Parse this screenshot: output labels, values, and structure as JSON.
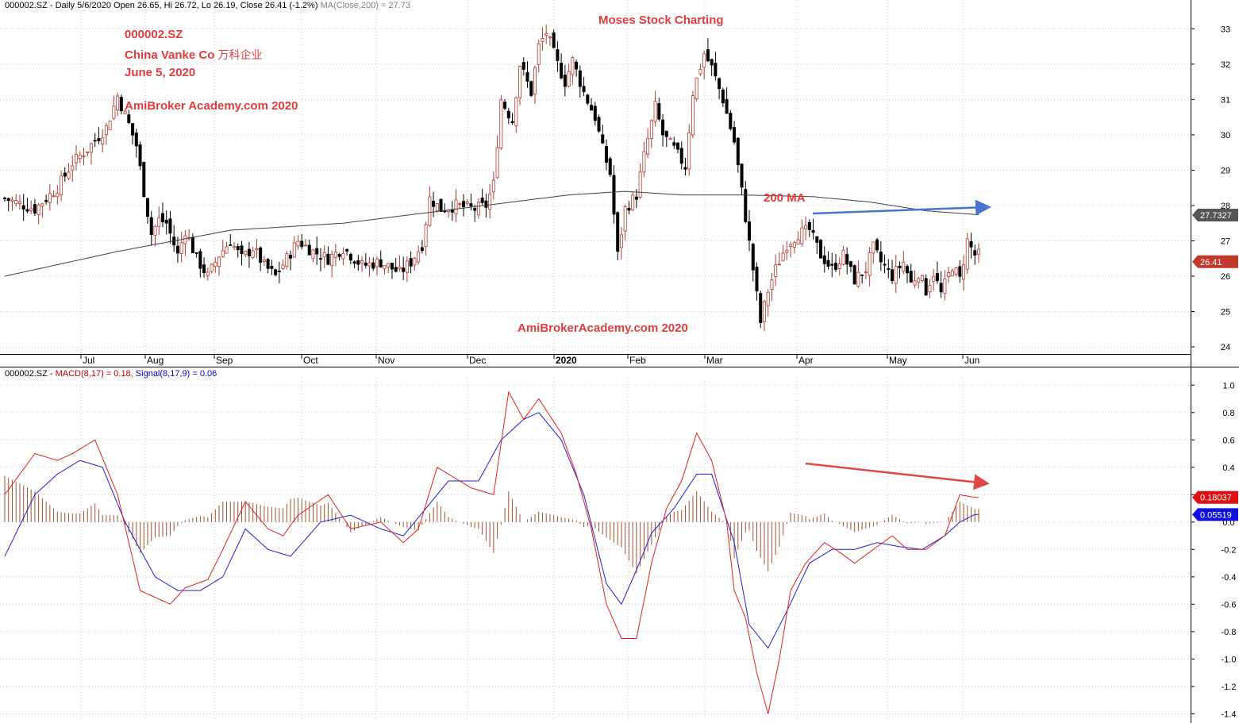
{
  "price_header": {
    "symbol": "000002.SZ",
    "period": "Daily",
    "date": "5/6/2020",
    "open": "Open 26.65,",
    "hi": "Hi 26.72,",
    "lo": "Lo 26.19,",
    "close": "Close 26.41 (-1.2%)",
    "ma": "MA(Close,200) = 27.73"
  },
  "macd_header": {
    "symbol": "000002.SZ -",
    "macd": "MACD(8,17) = 0.18,",
    "signal": "Signal(8,17,9) = 0.06"
  },
  "annotations": {
    "ticker": "000002.SZ",
    "company": "China Vanke Co",
    "company_cn": "万科企业",
    "date": "June 5, 2020",
    "academy_top": "AmiBroker Academy.com  2020",
    "moses": "Moses Stock Charting",
    "ma_label": "200 MA",
    "academy_bottom": "AmiBrokerAcademy.com  2020"
  },
  "colors": {
    "up_candle": "#b03a2e",
    "down_candle": "#000000",
    "ma_line": "#404040",
    "macd_line": "#e02020",
    "signal_line": "#1f1fd0",
    "histogram": "#a0522d",
    "annotation": "#e03c3c",
    "trend_price": "#4a74c9",
    "trend_macd": "#e04848"
  },
  "chart_data": [
    {
      "type": "candlestick",
      "title": "000002.SZ - Daily",
      "x_labels": [
        "Jul",
        "Aug",
        "Sep",
        "Oct",
        "Nov",
        "Dec",
        "2020",
        "Feb",
        "Mar",
        "Apr",
        "May",
        "Jun"
      ],
      "ylim": [
        23.8,
        33.5
      ],
      "y_ticks": [
        24,
        25,
        26,
        27,
        28,
        29,
        30,
        31,
        32,
        33
      ],
      "last_price": "26.41",
      "ma_value": "27.7327",
      "price_path": [
        [
          0,
          28.2
        ],
        [
          8,
          27.9
        ],
        [
          14,
          28.5
        ],
        [
          18,
          29.2
        ],
        [
          22,
          29.6
        ],
        [
          27,
          30.2
        ],
        [
          30,
          31.1
        ],
        [
          33,
          30.3
        ],
        [
          35,
          29.7
        ],
        [
          37,
          28.4
        ],
        [
          39,
          27.2
        ],
        [
          41,
          27.6
        ],
        [
          43,
          27.5
        ],
        [
          46,
          26.6
        ],
        [
          48,
          27.3
        ],
        [
          51,
          26.5
        ],
        [
          54,
          26.0
        ],
        [
          57,
          26.6
        ],
        [
          60,
          27.0
        ],
        [
          63,
          26.5
        ],
        [
          66,
          26.8
        ],
        [
          69,
          26.3
        ],
        [
          72,
          26.0
        ],
        [
          75,
          26.5
        ],
        [
          78,
          27.0
        ],
        [
          82,
          26.7
        ],
        [
          86,
          26.5
        ],
        [
          90,
          26.8
        ],
        [
          95,
          26.3
        ],
        [
          100,
          26.4
        ],
        [
          105,
          26.1
        ],
        [
          108,
          26.4
        ],
        [
          111,
          26.9
        ],
        [
          113,
          28.2
        ],
        [
          116,
          27.9
        ],
        [
          120,
          28.0
        ],
        [
          125,
          27.9
        ],
        [
          128,
          28.0
        ],
        [
          130,
          28.6
        ],
        [
          132,
          31.0
        ],
        [
          135,
          30.4
        ],
        [
          137,
          32.0
        ],
        [
          140,
          31.2
        ],
        [
          142,
          32.5
        ],
        [
          144,
          32.9
        ],
        [
          147,
          32.0
        ],
        [
          149,
          31.5
        ],
        [
          151,
          32.1
        ],
        [
          154,
          31.2
        ],
        [
          157,
          30.5
        ],
        [
          159,
          29.6
        ],
        [
          161,
          28.9
        ],
        [
          163,
          26.6
        ],
        [
          165,
          27.9
        ],
        [
          168,
          28.3
        ],
        [
          170,
          29.4
        ],
        [
          173,
          30.8
        ],
        [
          175,
          30.0
        ],
        [
          178,
          29.6
        ],
        [
          181,
          29.1
        ],
        [
          183,
          31.2
        ],
        [
          186,
          32.3
        ],
        [
          188,
          31.9
        ],
        [
          191,
          31.0
        ],
        [
          194,
          29.8
        ],
        [
          196,
          28.4
        ],
        [
          199,
          26.2
        ],
        [
          201,
          24.7
        ],
        [
          203,
          25.6
        ],
        [
          205,
          26.2
        ],
        [
          208,
          26.9
        ],
        [
          211,
          27.2
        ],
        [
          214,
          27.3
        ],
        [
          217,
          26.6
        ],
        [
          220,
          26.2
        ],
        [
          223,
          26.6
        ],
        [
          226,
          25.9
        ],
        [
          229,
          26.2
        ],
        [
          231,
          26.8
        ],
        [
          233,
          26.4
        ],
        [
          236,
          26.0
        ],
        [
          239,
          26.4
        ],
        [
          241,
          25.8
        ],
        [
          243,
          26.1
        ],
        [
          245,
          25.6
        ],
        [
          247,
          26.1
        ],
        [
          249,
          25.5
        ],
        [
          252,
          26.3
        ],
        [
          254,
          25.9
        ],
        [
          256,
          27.0
        ],
        [
          258,
          26.6
        ]
      ],
      "ma_path": [
        [
          0,
          26.0
        ],
        [
          30,
          26.7
        ],
        [
          60,
          27.3
        ],
        [
          90,
          27.5
        ],
        [
          120,
          27.9
        ],
        [
          150,
          28.3
        ],
        [
          165,
          28.4
        ],
        [
          180,
          28.3
        ],
        [
          195,
          28.3
        ],
        [
          215,
          28.25
        ],
        [
          230,
          28.1
        ],
        [
          245,
          27.85
        ],
        [
          260,
          27.73
        ]
      ]
    },
    {
      "type": "line",
      "title": "MACD(8,17) / Signal(8,17,9)",
      "ylim": [
        -1.45,
        1.1
      ],
      "y_ticks": [
        -1.4,
        -1.2,
        -1.0,
        -0.8,
        -0.6,
        -0.4,
        -0.2,
        0.0,
        0.2,
        0.4,
        0.6,
        0.8,
        1.0
      ],
      "macd_value": "0.18037",
      "signal_value": "0.05519",
      "series": [
        {
          "name": "MACD(8,17)",
          "points": [
            [
              0,
              0.2
            ],
            [
              8,
              0.5
            ],
            [
              14,
              0.45
            ],
            [
              18,
              0.5
            ],
            [
              24,
              0.6
            ],
            [
              30,
              0.2
            ],
            [
              36,
              -0.5
            ],
            [
              40,
              -0.55
            ],
            [
              44,
              -0.6
            ],
            [
              48,
              -0.48
            ],
            [
              54,
              -0.42
            ],
            [
              58,
              -0.2
            ],
            [
              64,
              0.15
            ],
            [
              70,
              -0.05
            ],
            [
              74,
              -0.1
            ],
            [
              78,
              0.05
            ],
            [
              86,
              0.2
            ],
            [
              92,
              -0.05
            ],
            [
              100,
              0.0
            ],
            [
              106,
              -0.15
            ],
            [
              110,
              -0.05
            ],
            [
              115,
              0.4
            ],
            [
              118,
              0.35
            ],
            [
              124,
              0.25
            ],
            [
              130,
              0.2
            ],
            [
              134,
              0.95
            ],
            [
              138,
              0.75
            ],
            [
              142,
              0.9
            ],
            [
              148,
              0.65
            ],
            [
              152,
              0.35
            ],
            [
              156,
              -0.05
            ],
            [
              160,
              -0.6
            ],
            [
              164,
              -0.85
            ],
            [
              168,
              -0.85
            ],
            [
              172,
              -0.3
            ],
            [
              176,
              0.1
            ],
            [
              180,
              0.3
            ],
            [
              184,
              0.65
            ],
            [
              188,
              0.45
            ],
            [
              192,
              0.0
            ],
            [
              194,
              -0.5
            ],
            [
              197,
              -0.7
            ],
            [
              200,
              -1.1
            ],
            [
              203,
              -1.4
            ],
            [
              206,
              -1.0
            ],
            [
              209,
              -0.5
            ],
            [
              213,
              -0.3
            ],
            [
              218,
              -0.15
            ],
            [
              222,
              -0.22
            ],
            [
              226,
              -0.3
            ],
            [
              231,
              -0.2
            ],
            [
              236,
              -0.1
            ],
            [
              240,
              -0.2
            ],
            [
              245,
              -0.2
            ],
            [
              250,
              -0.1
            ],
            [
              254,
              0.2
            ],
            [
              258,
              0.18
            ]
          ]
        },
        {
          "name": "Signal(8,17,9)",
          "points": [
            [
              0,
              -0.25
            ],
            [
              8,
              0.2
            ],
            [
              14,
              0.35
            ],
            [
              20,
              0.45
            ],
            [
              26,
              0.4
            ],
            [
              32,
              0.0
            ],
            [
              40,
              -0.4
            ],
            [
              46,
              -0.5
            ],
            [
              52,
              -0.5
            ],
            [
              58,
              -0.4
            ],
            [
              64,
              -0.05
            ],
            [
              70,
              -0.2
            ],
            [
              76,
              -0.25
            ],
            [
              84,
              0.0
            ],
            [
              92,
              0.05
            ],
            [
              100,
              -0.05
            ],
            [
              106,
              -0.1
            ],
            [
              112,
              0.1
            ],
            [
              118,
              0.3
            ],
            [
              126,
              0.3
            ],
            [
              132,
              0.6
            ],
            [
              138,
              0.75
            ],
            [
              142,
              0.8
            ],
            [
              148,
              0.6
            ],
            [
              154,
              0.2
            ],
            [
              160,
              -0.45
            ],
            [
              164,
              -0.6
            ],
            [
              168,
              -0.35
            ],
            [
              172,
              -0.08
            ],
            [
              178,
              0.1
            ],
            [
              184,
              0.35
            ],
            [
              188,
              0.35
            ],
            [
              194,
              -0.15
            ],
            [
              198,
              -0.75
            ],
            [
              203,
              -0.92
            ],
            [
              208,
              -0.65
            ],
            [
              214,
              -0.3
            ],
            [
              220,
              -0.2
            ],
            [
              226,
              -0.2
            ],
            [
              232,
              -0.15
            ],
            [
              238,
              -0.18
            ],
            [
              244,
              -0.2
            ],
            [
              250,
              -0.1
            ],
            [
              254,
              0.0
            ],
            [
              258,
              0.055
            ]
          ]
        }
      ]
    }
  ]
}
